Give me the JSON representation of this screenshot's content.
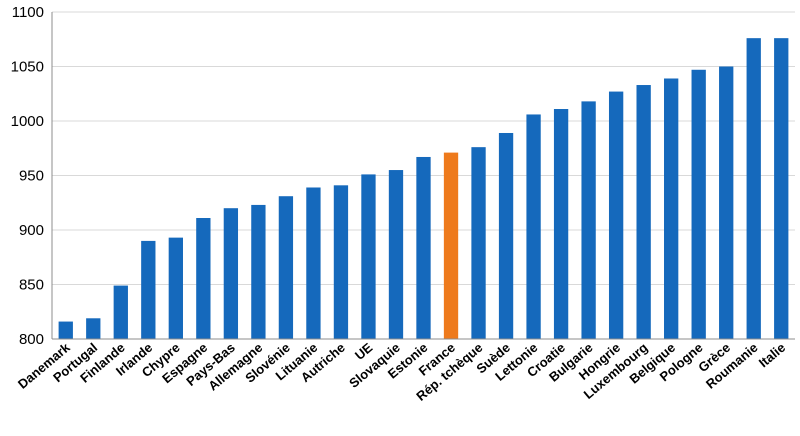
{
  "chart_data": {
    "type": "bar",
    "categories": [
      "Danemark",
      "Portugal",
      "Finlande",
      "Irlande",
      "Chypre",
      "Espagne",
      "Pays-Bas",
      "Allemagne",
      "Slovénie",
      "Lituanie",
      "Autriche",
      "UE",
      "Slovaquie",
      "Estonie",
      "France",
      "Rép. tchèque",
      "Suède",
      "Lettonie",
      "Croatie",
      "Bulgarie",
      "Hongrie",
      "Luxembourg",
      "Belgique",
      "Pologne",
      "Grèce",
      "Roumanie",
      "Italie"
    ],
    "values": [
      816,
      819,
      849,
      890,
      893,
      911,
      920,
      923,
      931,
      939,
      941,
      951,
      955,
      967,
      971,
      976,
      989,
      1006,
      1011,
      1018,
      1027,
      1033,
      1039,
      1047,
      1050,
      1076,
      1076
    ],
    "ylim": [
      800,
      1100
    ],
    "yticks": [
      800,
      850,
      900,
      950,
      1000,
      1050,
      1100
    ],
    "title": "",
    "xlabel": "",
    "ylabel": "",
    "grid": true,
    "colors": {
      "default": "#1569bc",
      "highlight": "#ee7a1c"
    },
    "highlight": "France"
  }
}
